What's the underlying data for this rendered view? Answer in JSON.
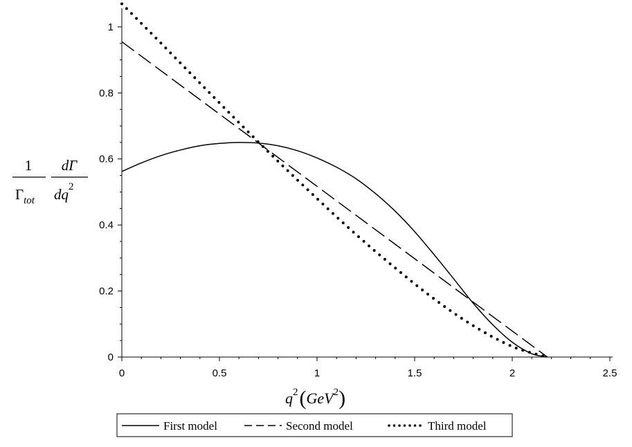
{
  "chart_data": {
    "type": "line",
    "ylabel": {
      "frac1_num": "1",
      "frac1_den_base": "Γ",
      "frac1_den_sub": "tot",
      "frac2_num": "dΓ",
      "frac2_den_base": "dq",
      "frac2_den_sup": "2"
    },
    "xlabel": {
      "base": "q",
      "sup": "2",
      "unit_base": "GeV",
      "unit_sup": "2"
    },
    "xlim": [
      0,
      2.5
    ],
    "ylim": [
      0,
      1.05
    ],
    "x_ticks": [
      "0",
      "0.5",
      "1",
      "1.5",
      "2",
      "2.5"
    ],
    "y_ticks": [
      "0",
      "0.2",
      "0.4",
      "0.6",
      "0.8",
      "1"
    ],
    "grid": false,
    "legend_position": "bottom",
    "series": [
      {
        "name": "First model",
        "style": "solid",
        "x": [
          0,
          0.1,
          0.2,
          0.3,
          0.4,
          0.5,
          0.6,
          0.7,
          0.8,
          0.9,
          1.0,
          1.1,
          1.2,
          1.3,
          1.4,
          1.5,
          1.6,
          1.7,
          1.8,
          1.9,
          2.0,
          2.1,
          2.18
        ],
        "y": [
          0.562,
          0.588,
          0.61,
          0.627,
          0.64,
          0.647,
          0.65,
          0.648,
          0.64,
          0.625,
          0.603,
          0.575,
          0.54,
          0.495,
          0.442,
          0.38,
          0.31,
          0.237,
          0.163,
          0.098,
          0.045,
          0.01,
          0.0
        ]
      },
      {
        "name": "Second model",
        "style": "dashed",
        "x": [
          0,
          2.18
        ],
        "y": [
          0.955,
          0.0
        ]
      },
      {
        "name": "Third model",
        "style": "dotted",
        "x": [
          0,
          0.2,
          0.4,
          0.6,
          0.8,
          1.0,
          1.2,
          1.4,
          1.6,
          1.8,
          2.0,
          2.18
        ],
        "y": [
          1.07,
          0.951,
          0.83,
          0.71,
          0.593,
          0.48,
          0.371,
          0.27,
          0.176,
          0.095,
          0.032,
          0.0
        ]
      }
    ]
  }
}
